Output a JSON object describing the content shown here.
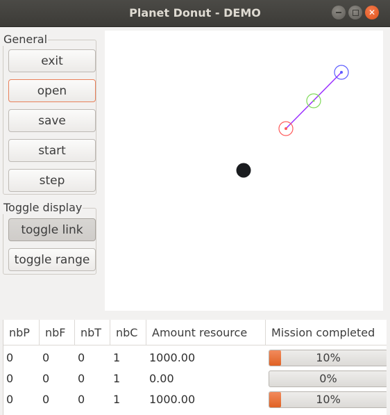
{
  "window": {
    "title": "Planet Donut - DEMO",
    "buttons": [
      "minimize-icon",
      "maximize-icon",
      "close-icon"
    ]
  },
  "general": {
    "label": "General",
    "buttons": [
      "exit",
      "open",
      "save",
      "start",
      "step"
    ]
  },
  "toggle": {
    "label": "Toggle display",
    "buttons": [
      "toggle link",
      "toggle range"
    ]
  },
  "canvas": {
    "background": "#ffffff",
    "base_color": "#1a1c1f",
    "link_color": "#9b30ff",
    "robot_colors": [
      "#5b5bff",
      "#7ed957",
      "#ff5a5a"
    ]
  },
  "table": {
    "headers": [
      "nbP",
      "nbF",
      "nbT",
      "nbC",
      "Amount resource",
      "Mission completed"
    ],
    "rows": [
      {
        "nbP": "0",
        "nbF": "0",
        "nbT": "0",
        "nbC": "1",
        "amount": "1000.00",
        "mission": "10%",
        "progress": 0.1
      },
      {
        "nbP": "0",
        "nbF": "0",
        "nbT": "0",
        "nbC": "1",
        "amount": "0.00",
        "mission": "0%",
        "progress": 0.0
      },
      {
        "nbP": "0",
        "nbF": "0",
        "nbT": "0",
        "nbC": "1",
        "amount": "1000.00",
        "mission": "10%",
        "progress": 0.1
      }
    ],
    "accent": "#e9622a"
  }
}
